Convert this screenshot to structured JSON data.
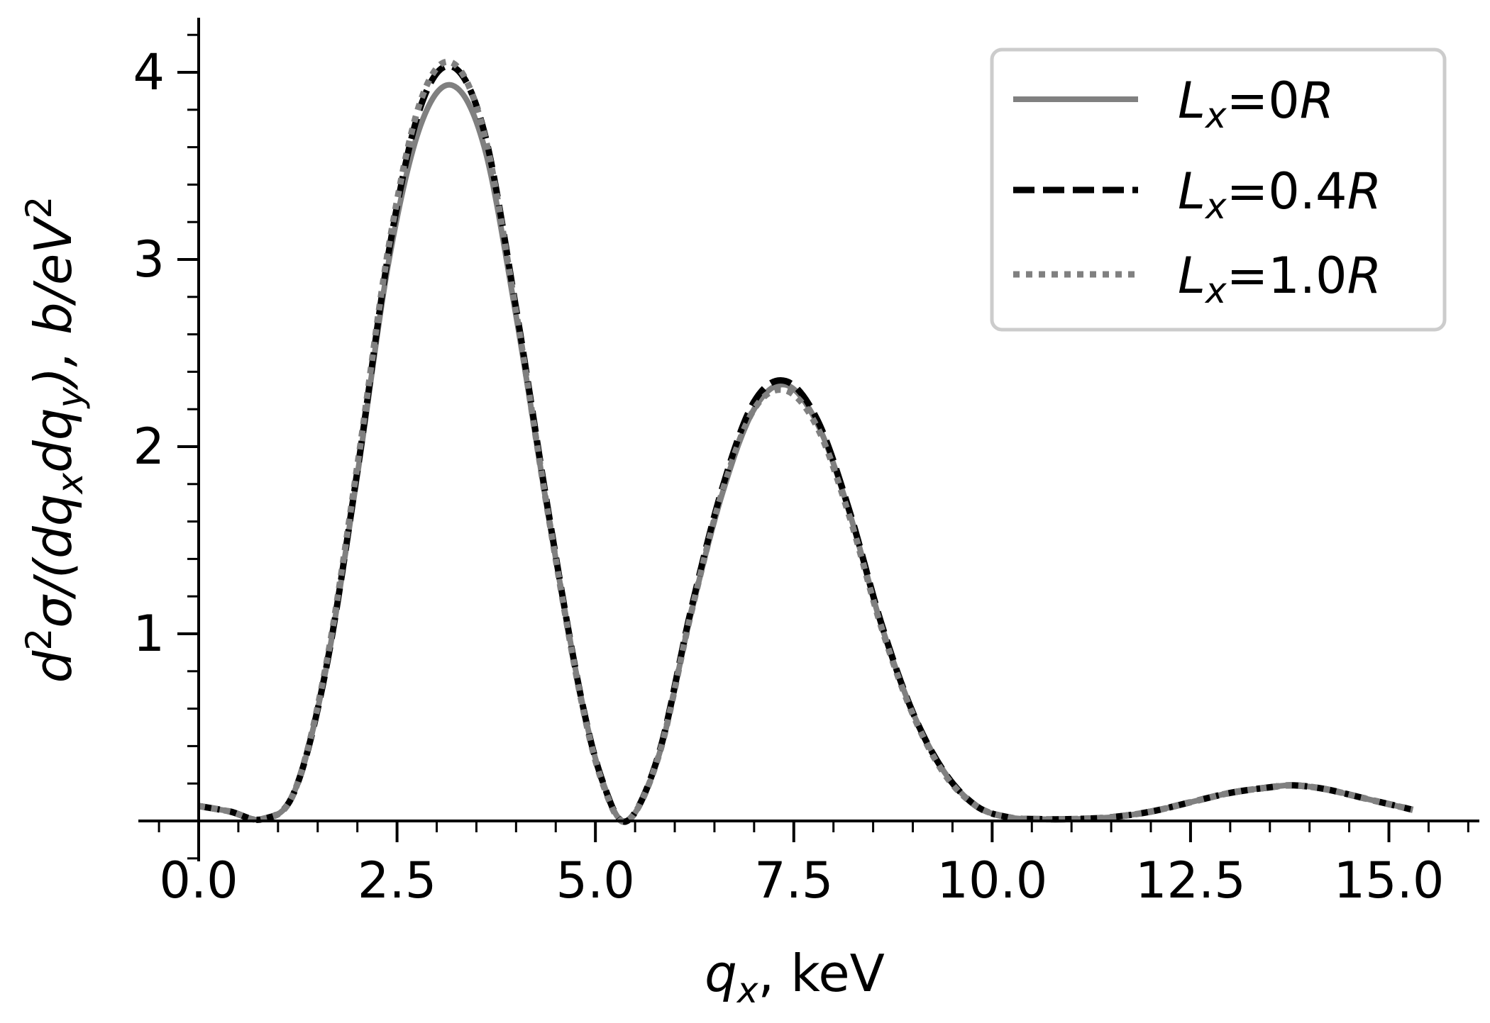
{
  "chart_data": {
    "type": "line",
    "xlabel": {
      "var": "q",
      "sub": "x",
      "rest": ", keV"
    },
    "ylabel": {
      "d": "d",
      "sq": "2",
      "sigma": "σ/(dq",
      "sub1": "x",
      "dq": "dq",
      "sub2": "y",
      "close": "),  b/eV",
      "sup2": "2"
    },
    "xlim": [
      -0.8,
      16.1
    ],
    "ylim": [
      -0.2,
      4.3
    ],
    "x_ticks": [
      0.0,
      2.5,
      5.0,
      7.5,
      10.0,
      12.5,
      15.0
    ],
    "x_tick_labels": [
      "0.0",
      "2.5",
      "5.0",
      "7.5",
      "10.0",
      "12.5",
      "15.0"
    ],
    "y_ticks": [
      1,
      2,
      3,
      4
    ],
    "y_tick_labels": [
      "1",
      "2",
      "3",
      "4"
    ],
    "grid": false,
    "legend_position": "top-right",
    "series": [
      {
        "name": "Lx=0R",
        "legend": {
          "main": "L",
          "sub": "x",
          "rest": "=0",
          "end": "R"
        },
        "style": "solid",
        "color": "#808080",
        "x": [
          0.0,
          0.4,
          0.8,
          1.2,
          1.6,
          2.0,
          2.4,
          2.8,
          3.2,
          3.6,
          4.0,
          4.4,
          4.8,
          5.1,
          5.4,
          5.8,
          6.2,
          6.6,
          7.0,
          7.4,
          7.8,
          8.2,
          8.6,
          9.0,
          9.4,
          9.8,
          10.2,
          10.6,
          11.0,
          11.5,
          12.0,
          12.5,
          13.0,
          13.5,
          13.8,
          14.2,
          14.7,
          15.3
        ],
        "y": [
          0.08,
          0.05,
          0.01,
          0.15,
          0.8,
          1.85,
          3.0,
          3.72,
          3.93,
          3.6,
          2.7,
          1.65,
          0.7,
          0.2,
          0.0,
          0.35,
          1.1,
          1.75,
          2.2,
          2.33,
          2.12,
          1.65,
          1.05,
          0.58,
          0.26,
          0.08,
          0.02,
          0.01,
          0.01,
          0.02,
          0.05,
          0.1,
          0.15,
          0.18,
          0.19,
          0.17,
          0.12,
          0.06
        ]
      },
      {
        "name": "Lx=0.4R",
        "legend": {
          "main": "L",
          "sub": "x",
          "rest": "=0.4",
          "end": "R"
        },
        "style": "dashed",
        "color": "#000000",
        "x": [
          0.0,
          0.4,
          0.8,
          1.2,
          1.6,
          2.0,
          2.4,
          2.8,
          3.2,
          3.6,
          4.0,
          4.4,
          4.8,
          5.1,
          5.4,
          5.8,
          6.2,
          6.6,
          7.0,
          7.4,
          7.8,
          8.2,
          8.6,
          9.0,
          9.4,
          9.8,
          10.2,
          10.6,
          11.0,
          11.5,
          12.0,
          12.5,
          13.0,
          13.5,
          13.8,
          14.2,
          14.7,
          15.3
        ],
        "y": [
          0.08,
          0.05,
          0.01,
          0.15,
          0.8,
          1.87,
          3.05,
          3.82,
          4.03,
          3.68,
          2.74,
          1.67,
          0.7,
          0.2,
          0.0,
          0.36,
          1.12,
          1.78,
          2.24,
          2.35,
          2.14,
          1.66,
          1.06,
          0.58,
          0.26,
          0.08,
          0.02,
          0.01,
          0.01,
          0.02,
          0.05,
          0.1,
          0.15,
          0.18,
          0.19,
          0.17,
          0.12,
          0.06
        ]
      },
      {
        "name": "Lx=1.0R",
        "legend": {
          "main": "L",
          "sub": "x",
          "rest": "=1.0",
          "end": "R"
        },
        "style": "dotted",
        "color": "#808080",
        "x": [
          0.0,
          0.4,
          0.8,
          1.2,
          1.6,
          2.0,
          2.4,
          2.8,
          3.2,
          3.6,
          4.0,
          4.4,
          4.8,
          5.1,
          5.4,
          5.8,
          6.2,
          6.6,
          7.0,
          7.4,
          7.8,
          8.2,
          8.6,
          9.0,
          9.4,
          9.8,
          10.2,
          10.6,
          11.0,
          11.5,
          12.0,
          12.5,
          13.0,
          13.5,
          13.8,
          14.2,
          14.7,
          15.3
        ],
        "y": [
          0.08,
          0.05,
          0.01,
          0.15,
          0.82,
          1.9,
          3.08,
          3.85,
          4.05,
          3.67,
          2.72,
          1.65,
          0.69,
          0.19,
          0.0,
          0.35,
          1.1,
          1.76,
          2.2,
          2.3,
          2.1,
          1.63,
          1.04,
          0.57,
          0.25,
          0.08,
          0.02,
          0.01,
          0.01,
          0.02,
          0.05,
          0.1,
          0.15,
          0.18,
          0.19,
          0.17,
          0.12,
          0.06
        ]
      }
    ]
  }
}
